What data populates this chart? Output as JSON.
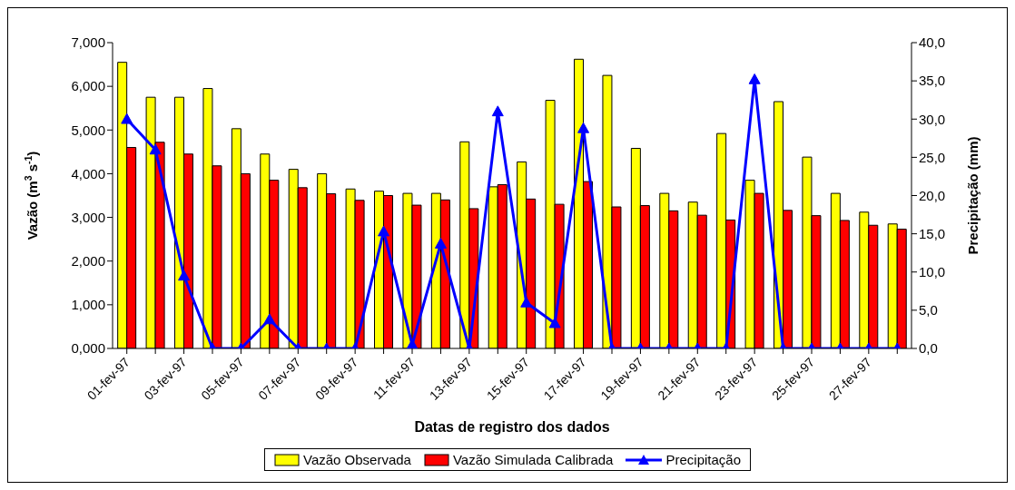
{
  "chart_data": {
    "type": "bar",
    "xlabel": "Datas de registro dos dados",
    "ylabel": "Vazão (m$^{3}$ s$^{-1}$)",
    "y2label": "Precipitação (mm)",
    "categories": [
      "01-fev-97",
      null,
      "03-fev-97",
      null,
      "05-fev-97",
      null,
      "07-fev-97",
      null,
      "09-fev-97",
      null,
      "11-fev-97",
      null,
      "13-fev-97",
      null,
      "15-fev-97",
      null,
      "17-fev-97",
      null,
      "19-fev-97",
      null,
      "21-fev-97",
      null,
      "23-fev-97",
      null,
      "25-fev-97",
      null,
      "27-fev-97",
      null
    ],
    "series": [
      {
        "name": "Vazão Observada",
        "color": "#ffff00",
        "values": [
          6.55,
          5.75,
          5.75,
          5.95,
          5.03,
          4.45,
          4.1,
          4.0,
          3.65,
          3.6,
          3.55,
          3.55,
          4.73,
          3.7,
          4.27,
          5.68,
          6.62,
          6.25,
          4.58,
          3.55,
          3.35,
          4.92,
          3.85,
          5.65,
          4.38,
          3.55,
          3.12,
          2.85
        ]
      },
      {
        "name": "Vazão Simulada Calibrada",
        "color": "#ff0000",
        "values": [
          4.6,
          4.72,
          4.45,
          4.18,
          4.0,
          3.85,
          3.68,
          3.54,
          3.39,
          3.5,
          3.28,
          3.4,
          3.2,
          3.75,
          3.42,
          3.3,
          3.82,
          3.24,
          3.27,
          3.15,
          3.05,
          2.94,
          3.55,
          3.16,
          3.04,
          2.93,
          2.82,
          2.73
        ]
      },
      {
        "name": "Precipitação",
        "type": "line",
        "axis": "y2",
        "color": "#0000ff",
        "marker": "triangle",
        "values": [
          30,
          26,
          9.5,
          0,
          0,
          3.8,
          0,
          0,
          0,
          15.3,
          0.5,
          13.7,
          0,
          31,
          6,
          3.3,
          28.8,
          0,
          0,
          0,
          0,
          0,
          35.2,
          0,
          0,
          0,
          0,
          0
        ]
      }
    ],
    "ylim": [
      0,
      7
    ],
    "yticks": [
      {
        "value": 0,
        "label": "0,000"
      },
      {
        "value": 1,
        "label": "1,000"
      },
      {
        "value": 2,
        "label": "2,000"
      },
      {
        "value": 3,
        "label": "3,000"
      },
      {
        "value": 4,
        "label": "4,000"
      },
      {
        "value": 5,
        "label": "5,000"
      },
      {
        "value": 6,
        "label": "6,000"
      },
      {
        "value": 7,
        "label": "7,000"
      }
    ],
    "y2lim": [
      0,
      40
    ],
    "y2ticks": [
      {
        "value": 0,
        "label": "0,0"
      },
      {
        "value": 5,
        "label": "5,0"
      },
      {
        "value": 10,
        "label": "10,0"
      },
      {
        "value": 15,
        "label": "15,0"
      },
      {
        "value": 20,
        "label": "20,0"
      },
      {
        "value": 25,
        "label": "25,0"
      },
      {
        "value": 30,
        "label": "30,0"
      },
      {
        "value": 35,
        "label": "35,0"
      },
      {
        "value": 40,
        "label": "40,0"
      }
    ],
    "legend": "bottom"
  }
}
